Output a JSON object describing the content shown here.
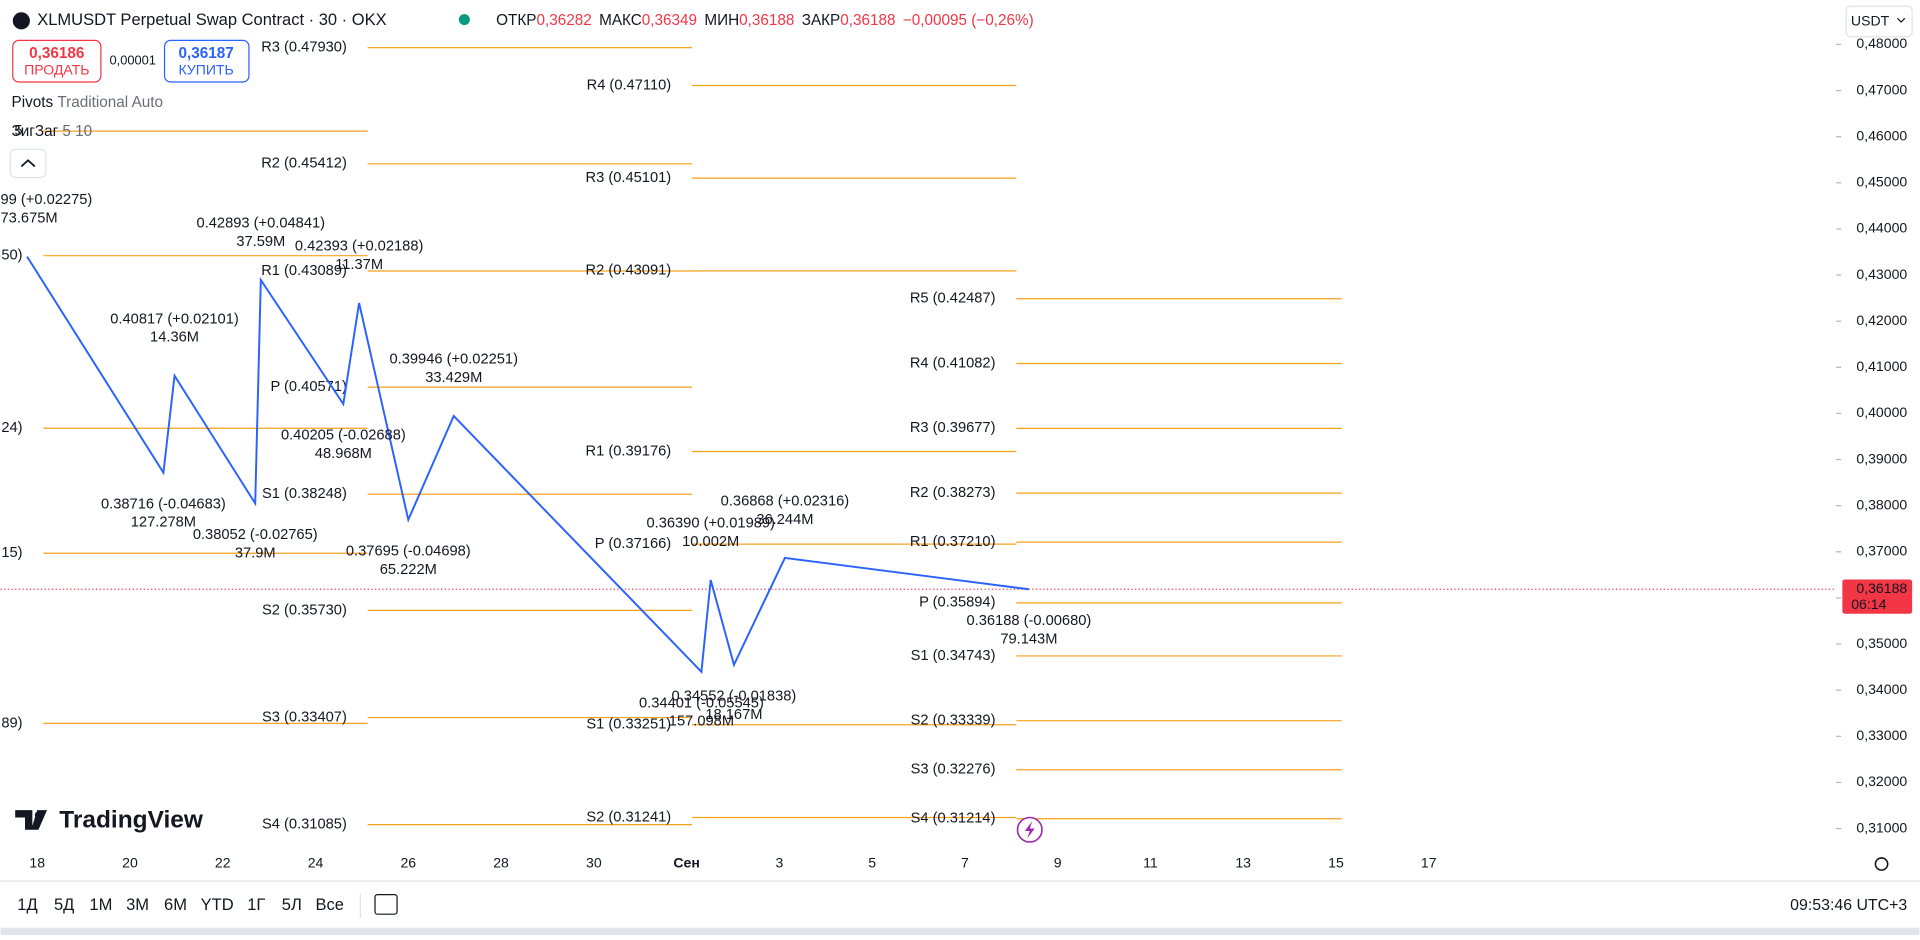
{
  "header": {
    "symbol": "XLMUSDT Perpetual Swap Contract · 30 · OKX",
    "ohlc": [
      {
        "key": "ОТКР",
        "value": "0,36282"
      },
      {
        "key": "МАКС",
        "value": "0,36349"
      },
      {
        "key": "МИН",
        "value": "0,36188"
      },
      {
        "key": "ЗАКР",
        "value": "0,36188"
      }
    ],
    "change": "−0,00095 (−0,26%)",
    "currency": "USDT"
  },
  "trade": {
    "sell_price": "0,36186",
    "sell": "ПРОДАТЬ",
    "spread": "0,00001",
    "buy_price": "0,36187",
    "buy": "КУПИТЬ"
  },
  "legend": [
    {
      "name": "Pivots",
      "params": "Traditional Auto"
    },
    {
      "name": "ЗигЗаг",
      "params": "5 10"
    }
  ],
  "logo": "TradingView",
  "chart": {
    "type": "line",
    "yticks": [
      {
        "value": 0.48,
        "label": "0,48000"
      },
      {
        "value": 0.47,
        "label": "0,47000"
      },
      {
        "value": 0.46,
        "label": "0,46000"
      },
      {
        "value": 0.45,
        "label": "0,45000"
      },
      {
        "value": 0.44,
        "label": "0,44000"
      },
      {
        "value": 0.43,
        "label": "0,43000"
      },
      {
        "value": 0.42,
        "label": "0,42000"
      },
      {
        "value": 0.41,
        "label": "0,41000"
      },
      {
        "value": 0.4,
        "label": "0,40000"
      },
      {
        "value": 0.39,
        "label": "0,39000"
      },
      {
        "value": 0.38,
        "label": "0,38000"
      },
      {
        "value": 0.37,
        "label": "0,37000"
      },
      {
        "value": 0.36,
        "label": "0,36000"
      },
      {
        "value": 0.35,
        "label": "0,35000"
      },
      {
        "value": 0.34,
        "label": "0,34000"
      },
      {
        "value": 0.33,
        "label": "0,33000"
      },
      {
        "value": 0.32,
        "label": "0,32000"
      },
      {
        "value": 0.31,
        "label": "0,31000"
      }
    ],
    "categories": [
      "18",
      "20",
      "22",
      "24",
      "26",
      "28",
      "30",
      "Сен",
      "3",
      "5",
      "7",
      "9",
      "11",
      "13",
      "15",
      "17"
    ],
    "zigzag": {
      "color": "#2962ff",
      "points": [
        {
          "x": -0.11,
          "price": 0.43399,
          "label": "99 (+0.02275)",
          "volume": "73.675M"
        },
        {
          "x": 1.36,
          "price": 0.38716,
          "label": "0.38716 (-0.04683)",
          "volume": "127.278M"
        },
        {
          "x": 1.48,
          "price": 0.40817,
          "label": "0.40817 (+0.02101)",
          "volume": "14.36M"
        },
        {
          "x": 2.35,
          "price": 0.38052,
          "label": "0.38052 (-0.02765)",
          "volume": "37.9M"
        },
        {
          "x": 2.41,
          "price": 0.42893,
          "label": "0.42893 (+0.04841)",
          "volume": "37.59M"
        },
        {
          "x": 3.3,
          "price": 0.40205,
          "label": "0.40205 (-0.02688)",
          "volume": "48.968M"
        },
        {
          "x": 3.47,
          "price": 0.42393,
          "label": "0.42393 (+0.02188)",
          "volume": "11.37M"
        },
        {
          "x": 4.0,
          "price": 0.37695,
          "label": "0.37695 (-0.04698)",
          "volume": "65.222M"
        },
        {
          "x": 4.49,
          "price": 0.39946,
          "label": "0.39946 (+0.02251)",
          "volume": "33.429M"
        },
        {
          "x": 7.16,
          "price": 0.34401,
          "label": "0.34401 (-0.05545)",
          "volume": "157.098M"
        },
        {
          "x": 7.26,
          "price": 0.3639,
          "label": "0.36390 (+0.01989)",
          "volume": "10.002M"
        },
        {
          "x": 7.51,
          "price": 0.34552,
          "label": "0.34552 (-0.01838)",
          "volume": "18.167M"
        },
        {
          "x": 8.06,
          "price": 0.36868,
          "label": "0.36868 (+0.02316)",
          "volume": "36.244M"
        },
        {
          "x": 10.69,
          "price": 0.36188,
          "label": "0.36188 (-0.00680)",
          "volume": "79.143M"
        }
      ]
    },
    "pivots": {
      "color": "#f7a21b",
      "periods": [
        {
          "levels": [
            {
              "label": "5",
              "price": 0.4612
            },
            {
              "label": "50)",
              "price": 0.4342
            },
            {
              "label": "24)",
              "price": 0.3968
            },
            {
              "label": "15)",
              "price": 0.3697
            },
            {
              "label": "89)",
              "price": 0.3328
            }
          ]
        },
        {
          "levels": [
            {
              "label": "R3 (0.47930)",
              "price": 0.4793
            },
            {
              "label": "R2 (0.45412)",
              "price": 0.45412
            },
            {
              "label": "R1 (0.43089)",
              "price": 0.43089
            },
            {
              "label": "P (0.40571)",
              "price": 0.40571
            },
            {
              "label": "S1 (0.38248)",
              "price": 0.38248
            },
            {
              "label": "S2 (0.35730)",
              "price": 0.3573
            },
            {
              "label": "S3 (0.33407)",
              "price": 0.33407
            },
            {
              "label": "S4 (0.31085)",
              "price": 0.31085
            }
          ]
        },
        {
          "levels": [
            {
              "label": "R4 (0.47110)",
              "price": 0.4711
            },
            {
              "label": "R3 (0.45101)",
              "price": 0.45101
            },
            {
              "label": "R2 (0.43091)",
              "price": 0.43091
            },
            {
              "label": "R1 (0.39176)",
              "price": 0.39176
            },
            {
              "label": "P (0.37166)",
              "price": 0.37166
            },
            {
              "label": "S1 (0.33251)",
              "price": 0.33251
            },
            {
              "label": "S2 (0.31241)",
              "price": 0.31241
            }
          ]
        },
        {
          "levels": [
            {
              "label": "R5 (0.42487)",
              "price": 0.42487
            },
            {
              "label": "R4 (0.41082)",
              "price": 0.41082
            },
            {
              "label": "R3 (0.39677)",
              "price": 0.39677
            },
            {
              "label": "R2 (0.38273)",
              "price": 0.38273
            },
            {
              "label": "R1 (0.37210)",
              "price": 0.3721
            },
            {
              "label": "P (0.35894)",
              "price": 0.35894
            },
            {
              "label": "S1 (0.34743)",
              "price": 0.34743
            },
            {
              "label": "S2 (0.33339)",
              "price": 0.33339
            },
            {
              "label": "S3 (0.32276)",
              "price": 0.32276
            },
            {
              "label": "S4 (0.31214)",
              "price": 0.31214
            }
          ]
        }
      ]
    },
    "last_price": {
      "value": 0.36188,
      "label": "0,36188",
      "countdown": "06:14",
      "color": "#f23645"
    }
  },
  "ranges": [
    "1Д",
    "5Д",
    "1М",
    "3М",
    "6М",
    "YTD",
    "1Г",
    "5Л",
    "Все"
  ],
  "clock": "09:53:46 UTC+3"
}
